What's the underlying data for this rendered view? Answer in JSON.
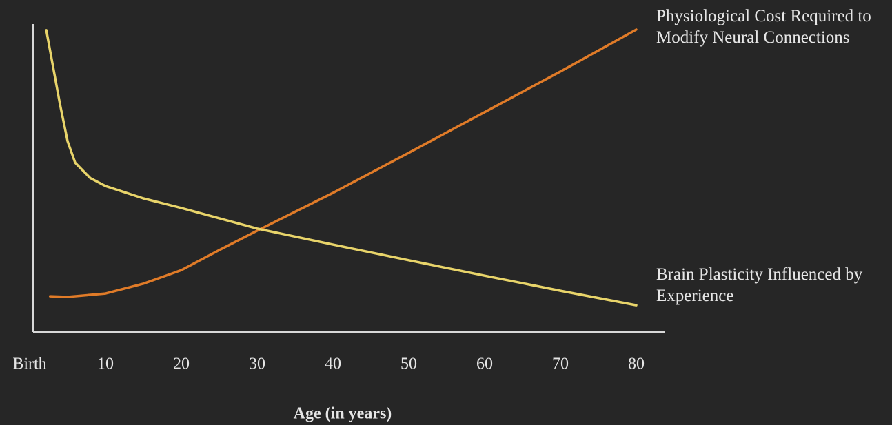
{
  "chart_data": {
    "type": "line",
    "xlabel": "Age (in years)",
    "xlim": [
      0,
      84.5
    ],
    "xticks": [
      {
        "value": 0,
        "label": "Birth"
      },
      10,
      20,
      30,
      40,
      50,
      60,
      70,
      80
    ],
    "ylim": [
      0,
      100
    ],
    "series": [
      {
        "name": "Physiological Cost Required to Modify Neural Connections",
        "color": "#e07b28",
        "x": [
          2.7,
          5,
          10,
          15,
          20,
          25,
          30,
          40,
          50,
          60,
          70,
          80
        ],
        "values": [
          11.6,
          11.4,
          12.5,
          15.7,
          20.1,
          26.6,
          32.9,
          45.2,
          58.2,
          71.4,
          84.6,
          98.2
        ]
      },
      {
        "name": "Brain Plasticity Influenced by Experience",
        "color": "#e8d46a",
        "x": [
          2.2,
          4,
          5,
          6,
          8,
          10,
          15,
          20,
          30,
          40,
          50,
          60,
          70,
          80
        ],
        "values": [
          98,
          74,
          62,
          55,
          50,
          47.4,
          43.4,
          40.3,
          33.6,
          28.4,
          23.3,
          18.3,
          13.4,
          8.7
        ]
      }
    ]
  }
}
